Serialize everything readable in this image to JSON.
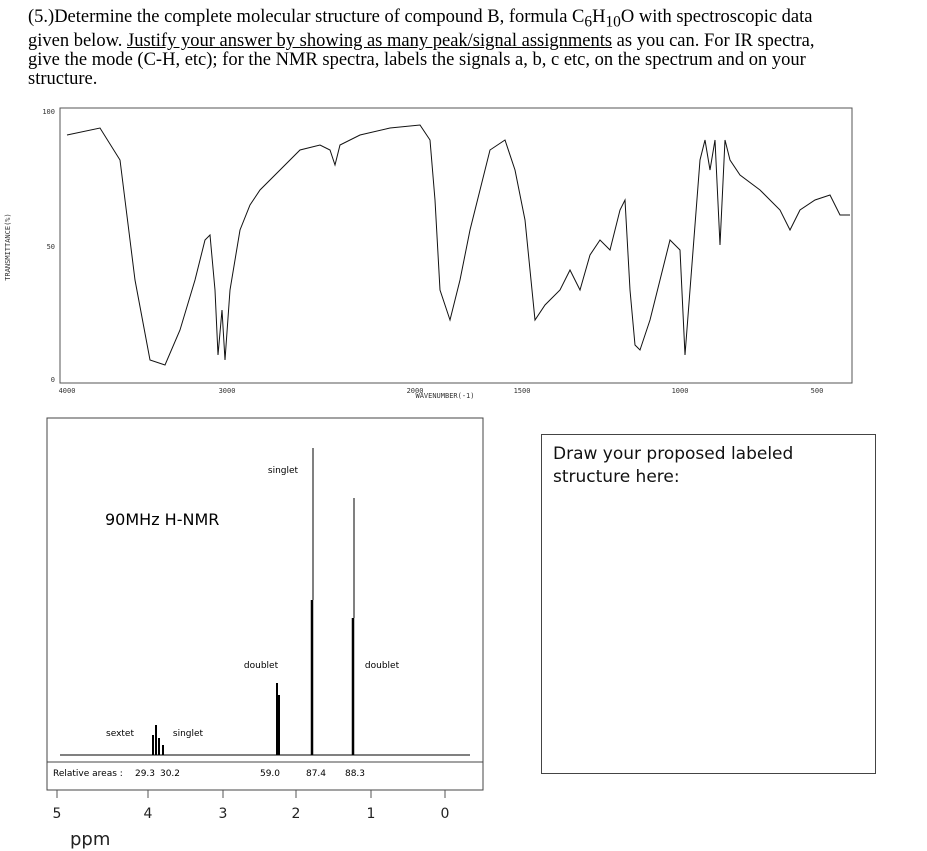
{
  "question": {
    "segments": [
      "(5.)Determine the complete molecular structure of compound  B, formula C",
      "6",
      "H",
      "10",
      "O with spectroscopic data given below.  ",
      "Justify your answer by showing as many peak/signal assignments",
      " as you can.  For IR spectra, give the mode (C-H, etc); for the NMR spectra, labels the signals a, b, c etc, on the spectrum and on your structure."
    ]
  },
  "ir": {
    "y_axis_label": "TRANSMITTANCE(%)",
    "y_ticks": [
      "100",
      "50",
      "0"
    ],
    "x_ticks": [
      "4000",
      "3000",
      "2000",
      "1500",
      "1000",
      "500"
    ],
    "x_axis_label": "WAVENUMBER(-1)"
  },
  "nmr": {
    "title": "90MHz H-NMR",
    "peak_labels": [
      "singlet",
      "doublet",
      "doublet",
      "sextet",
      "singlet"
    ],
    "areas_label": "Relative areas :",
    "areas": [
      "29.3",
      "30.2",
      "59.0",
      "87.4",
      "88.3"
    ],
    "ppm_ticks": [
      "5",
      "4",
      "3",
      "2",
      "1",
      "0"
    ],
    "ppm_label": "ppm"
  },
  "answer_box": {
    "prompt": "Draw your proposed labeled structure here:"
  }
}
